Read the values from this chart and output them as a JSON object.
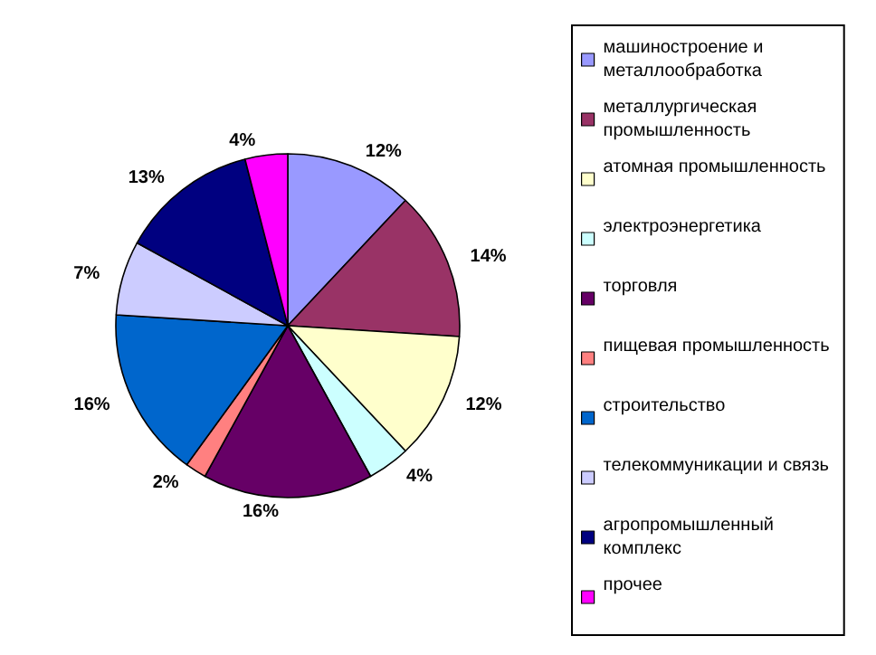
{
  "chart_data": {
    "type": "pie",
    "categories": [
      "машиностроение и металлообработка",
      "металлургическая промышленность",
      "атомная промышленность",
      "электроэнергетика",
      "торговля",
      "пищевая промышленность",
      "строительство",
      "телекоммуникации и связь",
      "агропромышленный комплекс",
      "прочее"
    ],
    "values": [
      12,
      14,
      12,
      4,
      16,
      2,
      16,
      7,
      13,
      4
    ],
    "value_labels": [
      "12%",
      "14%",
      "12%",
      "4%",
      "16%",
      "2%",
      "16%",
      "7%",
      "13%",
      "4%"
    ],
    "colors": [
      "#9999ff",
      "#993366",
      "#ffffcc",
      "#ccffff",
      "#660066",
      "#ff8080",
      "#0066cc",
      "#ccccff",
      "#000080",
      "#ff00ff"
    ],
    "legend": "right"
  }
}
